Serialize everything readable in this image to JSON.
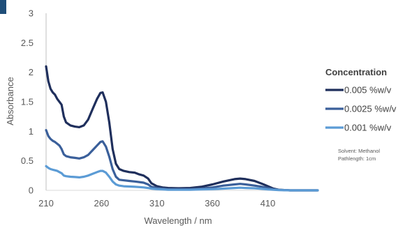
{
  "chart_data": {
    "type": "line",
    "xlabel": "Wavelength / nm",
    "ylabel": "Absorbance",
    "xlim": [
      210,
      455
    ],
    "ylim": [
      0,
      3
    ],
    "x_ticks": [
      210,
      260,
      310,
      360,
      410
    ],
    "y_ticks": [
      "0",
      "0.5",
      "1",
      "1.5",
      "2",
      "2.5",
      "3"
    ],
    "legend_title": "Concentration",
    "legend_position": "right",
    "grid": false,
    "notes": [
      "Solvent: Methanol",
      "Pathlength: 1cm"
    ],
    "series": [
      {
        "name": "0.005 %w/v",
        "color": "#1f2f5c",
        "points": [
          [
            210,
            2.1
          ],
          [
            212,
            1.85
          ],
          [
            214,
            1.72
          ],
          [
            216,
            1.66
          ],
          [
            218,
            1.62
          ],
          [
            220,
            1.55
          ],
          [
            222,
            1.5
          ],
          [
            224,
            1.45
          ],
          [
            226,
            1.25
          ],
          [
            228,
            1.15
          ],
          [
            232,
            1.1
          ],
          [
            236,
            1.08
          ],
          [
            240,
            1.07
          ],
          [
            244,
            1.1
          ],
          [
            248,
            1.2
          ],
          [
            252,
            1.38
          ],
          [
            256,
            1.55
          ],
          [
            259,
            1.65
          ],
          [
            261,
            1.66
          ],
          [
            264,
            1.5
          ],
          [
            267,
            1.15
          ],
          [
            270,
            0.7
          ],
          [
            273,
            0.45
          ],
          [
            276,
            0.36
          ],
          [
            280,
            0.33
          ],
          [
            285,
            0.31
          ],
          [
            290,
            0.3
          ],
          [
            294,
            0.27
          ],
          [
            298,
            0.25
          ],
          [
            302,
            0.2
          ],
          [
            305,
            0.12
          ],
          [
            310,
            0.07
          ],
          [
            315,
            0.05
          ],
          [
            320,
            0.04
          ],
          [
            330,
            0.035
          ],
          [
            340,
            0.04
          ],
          [
            350,
            0.06
          ],
          [
            360,
            0.1
          ],
          [
            370,
            0.15
          ],
          [
            380,
            0.19
          ],
          [
            385,
            0.2
          ],
          [
            390,
            0.19
          ],
          [
            398,
            0.16
          ],
          [
            405,
            0.11
          ],
          [
            410,
            0.07
          ],
          [
            415,
            0.03
          ],
          [
            420,
            0.01
          ],
          [
            430,
            0.0
          ],
          [
            455,
            0.0
          ]
        ]
      },
      {
        "name": "0.0025 %w/v",
        "color": "#3a5f9a",
        "points": [
          [
            210,
            1.02
          ],
          [
            212,
            0.92
          ],
          [
            214,
            0.87
          ],
          [
            216,
            0.84
          ],
          [
            218,
            0.82
          ],
          [
            220,
            0.79
          ],
          [
            222,
            0.76
          ],
          [
            224,
            0.7
          ],
          [
            226,
            0.61
          ],
          [
            228,
            0.58
          ],
          [
            232,
            0.56
          ],
          [
            236,
            0.55
          ],
          [
            240,
            0.54
          ],
          [
            244,
            0.56
          ],
          [
            248,
            0.6
          ],
          [
            252,
            0.68
          ],
          [
            256,
            0.76
          ],
          [
            259,
            0.82
          ],
          [
            261,
            0.83
          ],
          [
            264,
            0.74
          ],
          [
            267,
            0.57
          ],
          [
            270,
            0.36
          ],
          [
            273,
            0.23
          ],
          [
            276,
            0.18
          ],
          [
            280,
            0.17
          ],
          [
            285,
            0.16
          ],
          [
            290,
            0.15
          ],
          [
            294,
            0.14
          ],
          [
            298,
            0.13
          ],
          [
            302,
            0.1
          ],
          [
            305,
            0.06
          ],
          [
            310,
            0.04
          ],
          [
            315,
            0.03
          ],
          [
            320,
            0.02
          ],
          [
            330,
            0.02
          ],
          [
            340,
            0.02
          ],
          [
            350,
            0.03
          ],
          [
            360,
            0.05
          ],
          [
            370,
            0.08
          ],
          [
            380,
            0.1
          ],
          [
            385,
            0.11
          ],
          [
            390,
            0.1
          ],
          [
            398,
            0.08
          ],
          [
            405,
            0.06
          ],
          [
            410,
            0.04
          ],
          [
            415,
            0.02
          ],
          [
            420,
            0.01
          ],
          [
            430,
            0.0
          ],
          [
            455,
            0.0
          ]
        ]
      },
      {
        "name": "0.001 %w/v",
        "color": "#5b9bd5",
        "points": [
          [
            210,
            0.41
          ],
          [
            212,
            0.38
          ],
          [
            214,
            0.36
          ],
          [
            216,
            0.35
          ],
          [
            218,
            0.34
          ],
          [
            220,
            0.33
          ],
          [
            222,
            0.31
          ],
          [
            224,
            0.29
          ],
          [
            226,
            0.25
          ],
          [
            228,
            0.24
          ],
          [
            232,
            0.23
          ],
          [
            236,
            0.225
          ],
          [
            240,
            0.22
          ],
          [
            244,
            0.23
          ],
          [
            248,
            0.25
          ],
          [
            252,
            0.28
          ],
          [
            256,
            0.31
          ],
          [
            259,
            0.33
          ],
          [
            261,
            0.33
          ],
          [
            264,
            0.3
          ],
          [
            267,
            0.23
          ],
          [
            270,
            0.15
          ],
          [
            273,
            0.1
          ],
          [
            276,
            0.08
          ],
          [
            280,
            0.07
          ],
          [
            285,
            0.065
          ],
          [
            290,
            0.06
          ],
          [
            294,
            0.055
          ],
          [
            298,
            0.05
          ],
          [
            302,
            0.04
          ],
          [
            305,
            0.03
          ],
          [
            310,
            0.02
          ],
          [
            315,
            0.015
          ],
          [
            320,
            0.01
          ],
          [
            330,
            0.01
          ],
          [
            340,
            0.01
          ],
          [
            350,
            0.015
          ],
          [
            360,
            0.02
          ],
          [
            370,
            0.03
          ],
          [
            380,
            0.04
          ],
          [
            385,
            0.045
          ],
          [
            390,
            0.04
          ],
          [
            398,
            0.035
          ],
          [
            405,
            0.025
          ],
          [
            410,
            0.015
          ],
          [
            415,
            0.01
          ],
          [
            420,
            0.005
          ],
          [
            430,
            0.0
          ],
          [
            455,
            0.0
          ]
        ]
      }
    ]
  }
}
